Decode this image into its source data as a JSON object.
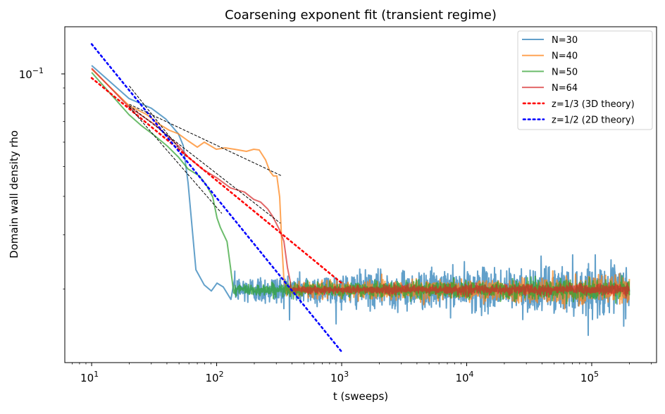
{
  "chart_data": {
    "type": "line",
    "title": "Coarsening exponent fit (transient regime)",
    "xlabel": "t (sweeps)",
    "ylabel": "Domain wall density rho",
    "xscale": "log",
    "yscale": "log",
    "xlim": [
      6.1,
      330000
    ],
    "ylim": [
      0.01153,
      0.1423
    ],
    "x_ticks": [
      {
        "value": 10,
        "base": "10",
        "exp": "1"
      },
      {
        "value": 100,
        "base": "10",
        "exp": "2"
      },
      {
        "value": 1000,
        "base": "10",
        "exp": "3"
      },
      {
        "value": 10000,
        "base": "10",
        "exp": "4"
      },
      {
        "value": 100000,
        "base": "10",
        "exp": "5"
      }
    ],
    "y_ticks": [
      {
        "value": 0.1,
        "base": "10",
        "exp": "−1"
      }
    ],
    "grid": false,
    "legend_placement": "upper right",
    "series": [
      {
        "name": "N=30",
        "color": "#1f77b4",
        "alpha": 0.7,
        "t": [
          10,
          19.9,
          25.4,
          30.1,
          39.1,
          49.4,
          54,
          59.1,
          68.2,
          79.6,
          90.7,
          100.7,
          113,
          130,
          139
        ],
        "rho": [
          0.1065,
          0.0832,
          0.0797,
          0.0773,
          0.0714,
          0.0639,
          0.0585,
          0.0442,
          0.0231,
          0.0206,
          0.0197,
          0.0209,
          0.0203,
          0.0185,
          0.0215
        ],
        "plateau": {
          "t_end": 200000,
          "mean": 0.0199,
          "min": 0.0154,
          "max": 0.0247
        }
      },
      {
        "name": "N=40",
        "color": "#ff7f0e",
        "alpha": 0.7,
        "t": [
          10,
          19.9,
          27.2,
          35.2,
          41.7,
          49.4,
          59.1,
          70,
          79.6,
          99.3,
          117,
          139,
          173,
          198,
          219,
          246,
          266,
          284,
          303,
          319,
          332,
          345,
          364
        ],
        "rho": [
          0.1037,
          0.0789,
          0.074,
          0.0684,
          0.0656,
          0.0639,
          0.0606,
          0.0578,
          0.06,
          0.0569,
          0.0575,
          0.0569,
          0.056,
          0.0569,
          0.0566,
          0.0526,
          0.0483,
          0.0466,
          0.0466,
          0.0398,
          0.0279,
          0.0215,
          0.019
        ],
        "plateau": {
          "t_end": 200000,
          "mean": 0.0199,
          "min": 0.0176,
          "max": 0.0229
        }
      },
      {
        "name": "N=50",
        "color": "#2ca02c",
        "alpha": 0.7,
        "t": [
          10,
          19.9,
          24.8,
          32.1,
          40.1,
          49.4,
          59.1,
          72.8,
          82.8,
          93,
          100.7,
          107,
          121,
          129,
          137
        ],
        "rho": [
          0.1011,
          0.0737,
          0.0681,
          0.0629,
          0.0584,
          0.0537,
          0.0491,
          0.0466,
          0.0435,
          0.0398,
          0.034,
          0.0317,
          0.0285,
          0.0235,
          0.0194
        ],
        "plateau": {
          "t_end": 200000,
          "mean": 0.0199,
          "min": 0.0183,
          "max": 0.0223
        }
      },
      {
        "name": "N=64",
        "color": "#d62728",
        "alpha": 0.7,
        "t": [
          10,
          19.9,
          32.1,
          49.4,
          59.1,
          76.7,
          100.7,
          129,
          167,
          198,
          225,
          256,
          280,
          319,
          345,
          368,
          388
        ],
        "rho": [
          0.1043,
          0.0781,
          0.0684,
          0.0584,
          0.0537,
          0.0491,
          0.0459,
          0.0426,
          0.0413,
          0.0391,
          0.0383,
          0.0364,
          0.0345,
          0.0311,
          0.0286,
          0.0235,
          0.0211
        ],
        "plateau": {
          "t_end": 200000,
          "mean": 0.0199,
          "min": 0.0189,
          "max": 0.0211
        }
      }
    ],
    "theory_lines": [
      {
        "name": "z=1/3 (3D theory)",
        "color": "#ff0000",
        "style": "dotted",
        "t_range": [
          10,
          1000
        ],
        "rho_at_10": 0.097,
        "slope": -0.3333
      },
      {
        "name": "z=1/2 (2D theory)",
        "color": "#0000ff",
        "style": "dotted",
        "t_range": [
          10,
          1000
        ],
        "rho_at_10": 0.125,
        "slope": -0.5
      }
    ],
    "fit_lines": [
      {
        "t": [
          20,
          50.6
        ],
        "rho": [
          0.0914,
          0.0569
        ]
      },
      {
        "t": [
          20,
          332
        ],
        "rho": [
          0.0797,
          0.0466
        ]
      },
      {
        "t": [
          20,
          324
        ],
        "rho": [
          0.0789,
          0.0327
        ]
      },
      {
        "t": [
          20,
          110
        ],
        "rho": [
          0.0781,
          0.0352
        ]
      }
    ]
  }
}
